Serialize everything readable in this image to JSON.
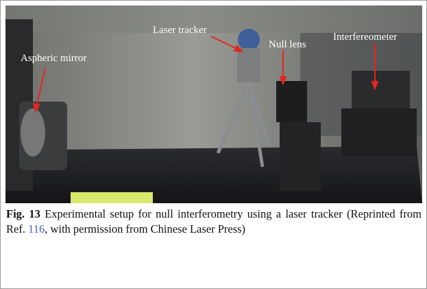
{
  "figure": {
    "labels": [
      "Laser tracker",
      "Null lens",
      "Interfereometer",
      "Aspheric mirror"
    ],
    "caption": {
      "label": "Fig. 13",
      "text": "Experimental setup for null interferometry using a laser tracker (Reprinted from Ref.",
      "ref": "116",
      "text_end": ", with permission from Chinese Laser Press)"
    }
  }
}
